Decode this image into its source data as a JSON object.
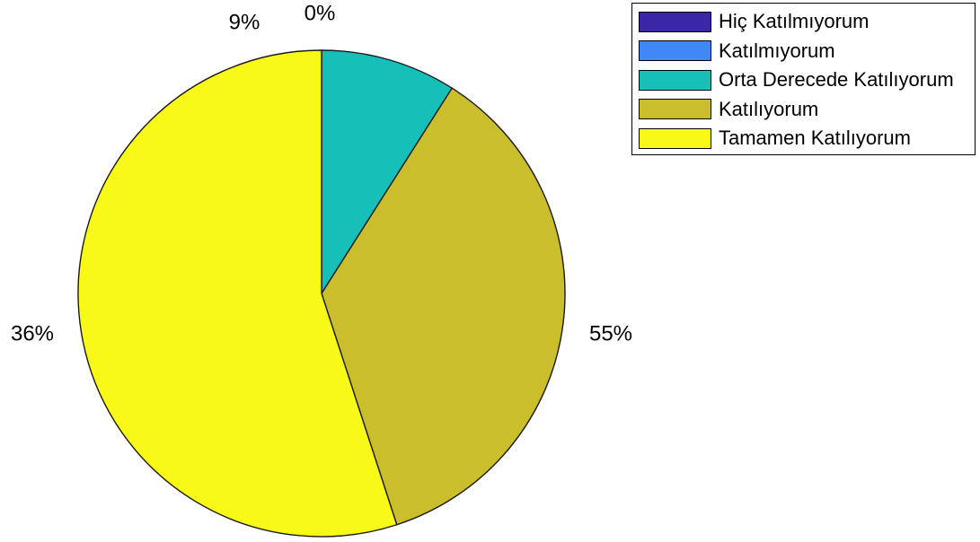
{
  "chart_data": {
    "type": "pie",
    "labels": [
      "Hiç Katılmıyorum",
      "Katılmıyorum",
      "Orta Derecede Katılıyorum",
      "Katılıyorum",
      "Tamamen Katılıyorum"
    ],
    "values": [
      0,
      0,
      9,
      36,
      55
    ],
    "value_labels": [
      "0%",
      "",
      "9%",
      "36%",
      "55%"
    ],
    "colors": [
      "#3a27a8",
      "#3f88f5",
      "#16bfb8",
      "#cbbe2c",
      "#f9f918"
    ],
    "legend_position": "top-right",
    "direction": "clockwise",
    "start": "top"
  }
}
